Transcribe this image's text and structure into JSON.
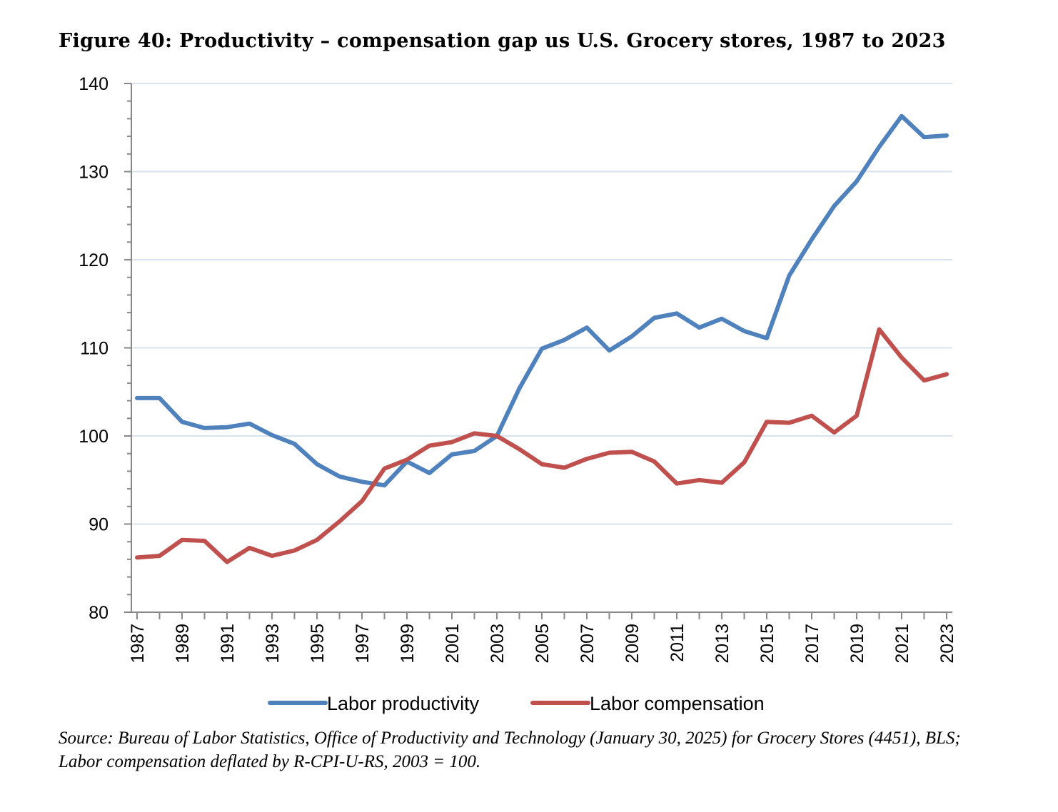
{
  "title": "Figure 40: Productivity – compensation gap us U.S. Grocery stores, 1987 to 2023",
  "source": "Source: Bureau of Labor Statistics, Office of Productivity and Technology (January 30, 2025) for Grocery Stores (4451), BLS; Labor compensation deflated by R-CPI-U-RS, 2003 = 100.",
  "colors": {
    "productivity": "#4f81bd",
    "compensation": "#c0504d",
    "grid": "#d9e3ef",
    "axis": "#888888"
  },
  "chart_data": {
    "type": "line",
    "title": "Figure 40: Productivity – compensation gap us U.S. Grocery stores, 1987 to 2023",
    "xlabel": "",
    "ylabel": "",
    "ylim": [
      80,
      140
    ],
    "yticks": [
      80,
      90,
      100,
      110,
      120,
      130,
      140
    ],
    "xtick_labels": [
      "1987",
      "1989",
      "1991",
      "1993",
      "1995",
      "1997",
      "1999",
      "2001",
      "2003",
      "2005",
      "2007",
      "2009",
      "2011",
      "2013",
      "2015",
      "2017",
      "2019",
      "2021",
      "2023"
    ],
    "grid": "horizontal",
    "legend": "bottom",
    "x": [
      1987,
      1988,
      1989,
      1990,
      1991,
      1992,
      1993,
      1994,
      1995,
      1996,
      1997,
      1998,
      1999,
      2000,
      2001,
      2002,
      2003,
      2004,
      2005,
      2006,
      2007,
      2008,
      2009,
      2010,
      2011,
      2012,
      2013,
      2014,
      2015,
      2016,
      2017,
      2018,
      2019,
      2020,
      2021,
      2022,
      2023
    ],
    "series": [
      {
        "name": "Labor productivity",
        "color": "#4f81bd",
        "values": [
          104.3,
          104.3,
          101.6,
          100.9,
          101.0,
          101.4,
          100.1,
          99.1,
          96.8,
          95.4,
          94.8,
          94.4,
          97.1,
          95.8,
          97.9,
          98.3,
          100.0,
          105.4,
          109.9,
          110.9,
          112.3,
          109.7,
          111.3,
          113.4,
          113.9,
          112.3,
          113.3,
          111.9,
          111.1,
          118.2,
          122.3,
          126.1,
          128.9,
          132.8,
          136.3,
          133.9,
          134.1
        ]
      },
      {
        "name": "Labor compensation",
        "color": "#c0504d",
        "values": [
          86.2,
          86.4,
          88.2,
          88.1,
          85.7,
          87.3,
          86.4,
          87.0,
          88.2,
          90.3,
          92.6,
          96.3,
          97.3,
          98.9,
          99.3,
          100.3,
          100.0,
          98.5,
          96.8,
          96.4,
          97.4,
          98.1,
          98.2,
          97.1,
          94.6,
          95.0,
          94.7,
          97.0,
          101.6,
          101.5,
          102.3,
          100.4,
          102.3,
          112.1,
          108.9,
          106.3,
          107.0
        ]
      }
    ]
  }
}
